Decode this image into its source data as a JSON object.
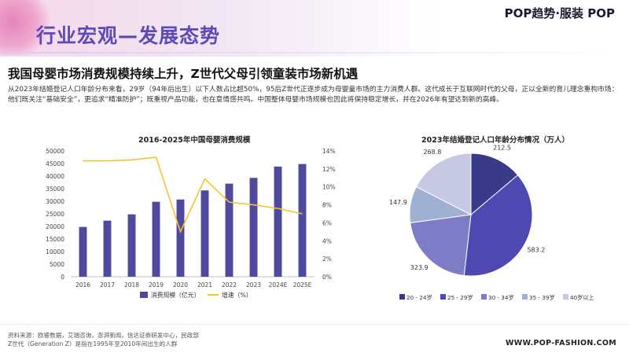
{
  "header": {
    "section_title": "行业宏观—发展态势",
    "brand": "POP趋势·服装  POP"
  },
  "headline": "我国母婴市场消费规模持续上升，Z世代父母引领童装市场新机遇",
  "intro": "从2023年结婚登记人口年龄分布来看，29岁（94年后出生）以下人数占比超50%，95后Z世代正逐步成为母婴童市场的主力消费人群。这代成长于互联网时代的父母，正以全新的育儿理念重构市场：他们既关注“基础安全”，更追求“精准防护”；既重视产品功能，也在意情感共鸣。中国整体母婴市场规模也因此将保持稳定增长，并在2026年有望达到新的高峰。",
  "colors": {
    "bar": "#4f4a9e",
    "line": "#f2c530",
    "title": "#5b4bb8"
  },
  "chart_data": [
    {
      "type": "bar",
      "title": "2016-2025年中国母婴消费规模",
      "categories": [
        "2016",
        "2017",
        "2018",
        "2019",
        "2020",
        "2021",
        "2022",
        "2023",
        "2024E",
        "2025E"
      ],
      "series": [
        {
          "name": "消费规模（亿元）",
          "axis": "left",
          "values": [
            19800,
            22300,
            24800,
            29800,
            30700,
            34300,
            37000,
            39300,
            43800,
            44800
          ]
        },
        {
          "name": "增速（%）",
          "type": "line",
          "axis": "right",
          "values": [
            12.9,
            12.9,
            13.0,
            13.3,
            5.0,
            10.9,
            8.3,
            8.0,
            7.6,
            7.0
          ]
        }
      ],
      "y_left": {
        "min": 0,
        "max": 50000,
        "ticks": [
          "0",
          "5000",
          "10000",
          "15000",
          "20000",
          "25000",
          "30000",
          "35000",
          "40000",
          "45000",
          "50000"
        ]
      },
      "y_right": {
        "min": 0,
        "max": 14,
        "ticks": [
          "0%",
          "2%",
          "4%",
          "6%",
          "8%",
          "10%",
          "12%",
          "14%"
        ]
      },
      "legend": "bottom",
      "grid": false
    },
    {
      "type": "pie",
      "title": "2023年结婚登记人口年龄分布情况（万人）",
      "categories": [
        "20 - 24岁",
        "25 - 29岁",
        "30 - 34岁",
        "35 - 39岁",
        "40岁以上"
      ],
      "values": [
        212.5,
        583.2,
        323.9,
        147.9,
        268.8
      ],
      "value_labels": [
        "212.5",
        "583.2",
        "323.9",
        "147.9",
        "268.8"
      ],
      "colors": [
        "#3b3a8a",
        "#4e49b0",
        "#7f7cc7",
        "#9fb0d3",
        "#c7c8e4"
      ],
      "legend": "bottom"
    }
  ],
  "footer": {
    "source_line1": "资料来源：欧睿数据，艾瑞咨询，澎湃新闻，信达证券研发中心，民政部",
    "source_line2": "Z世代（Generation Z）是指在1995年至2010年间出生的人群",
    "website": "WWW.POP-FASHION.COM"
  }
}
